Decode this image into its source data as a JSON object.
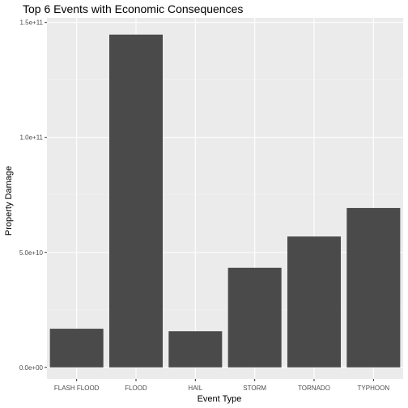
{
  "chart_data": {
    "type": "bar",
    "title": "Top 6 Events with Economic Consequences",
    "xlabel": "Event Type",
    "ylabel": "Property Damage",
    "categories": [
      "FLASH FLOOD",
      "FLOOD",
      "HAIL",
      "STORM",
      "TORNADO",
      "TYPHOON"
    ],
    "values": [
      16800000000,
      144700000000,
      15700000000,
      43300000000,
      56900000000,
      69300000000
    ],
    "ylim": [
      -5000000000,
      152000000000
    ],
    "yticks": [
      0,
      50000000000,
      100000000000,
      150000000000
    ],
    "ytick_labels": [
      "0.0e+00",
      "5.0e+10",
      "1.0e+11",
      "1.5e+11"
    ],
    "grid": true,
    "legend": "none",
    "colors": {
      "bar": "#4a4a4a",
      "panel_background": "#ebebeb",
      "grid_major": "#ffffff",
      "grid_minor": "#f2f2f2",
      "tick_text": "#4d4d4d"
    }
  }
}
